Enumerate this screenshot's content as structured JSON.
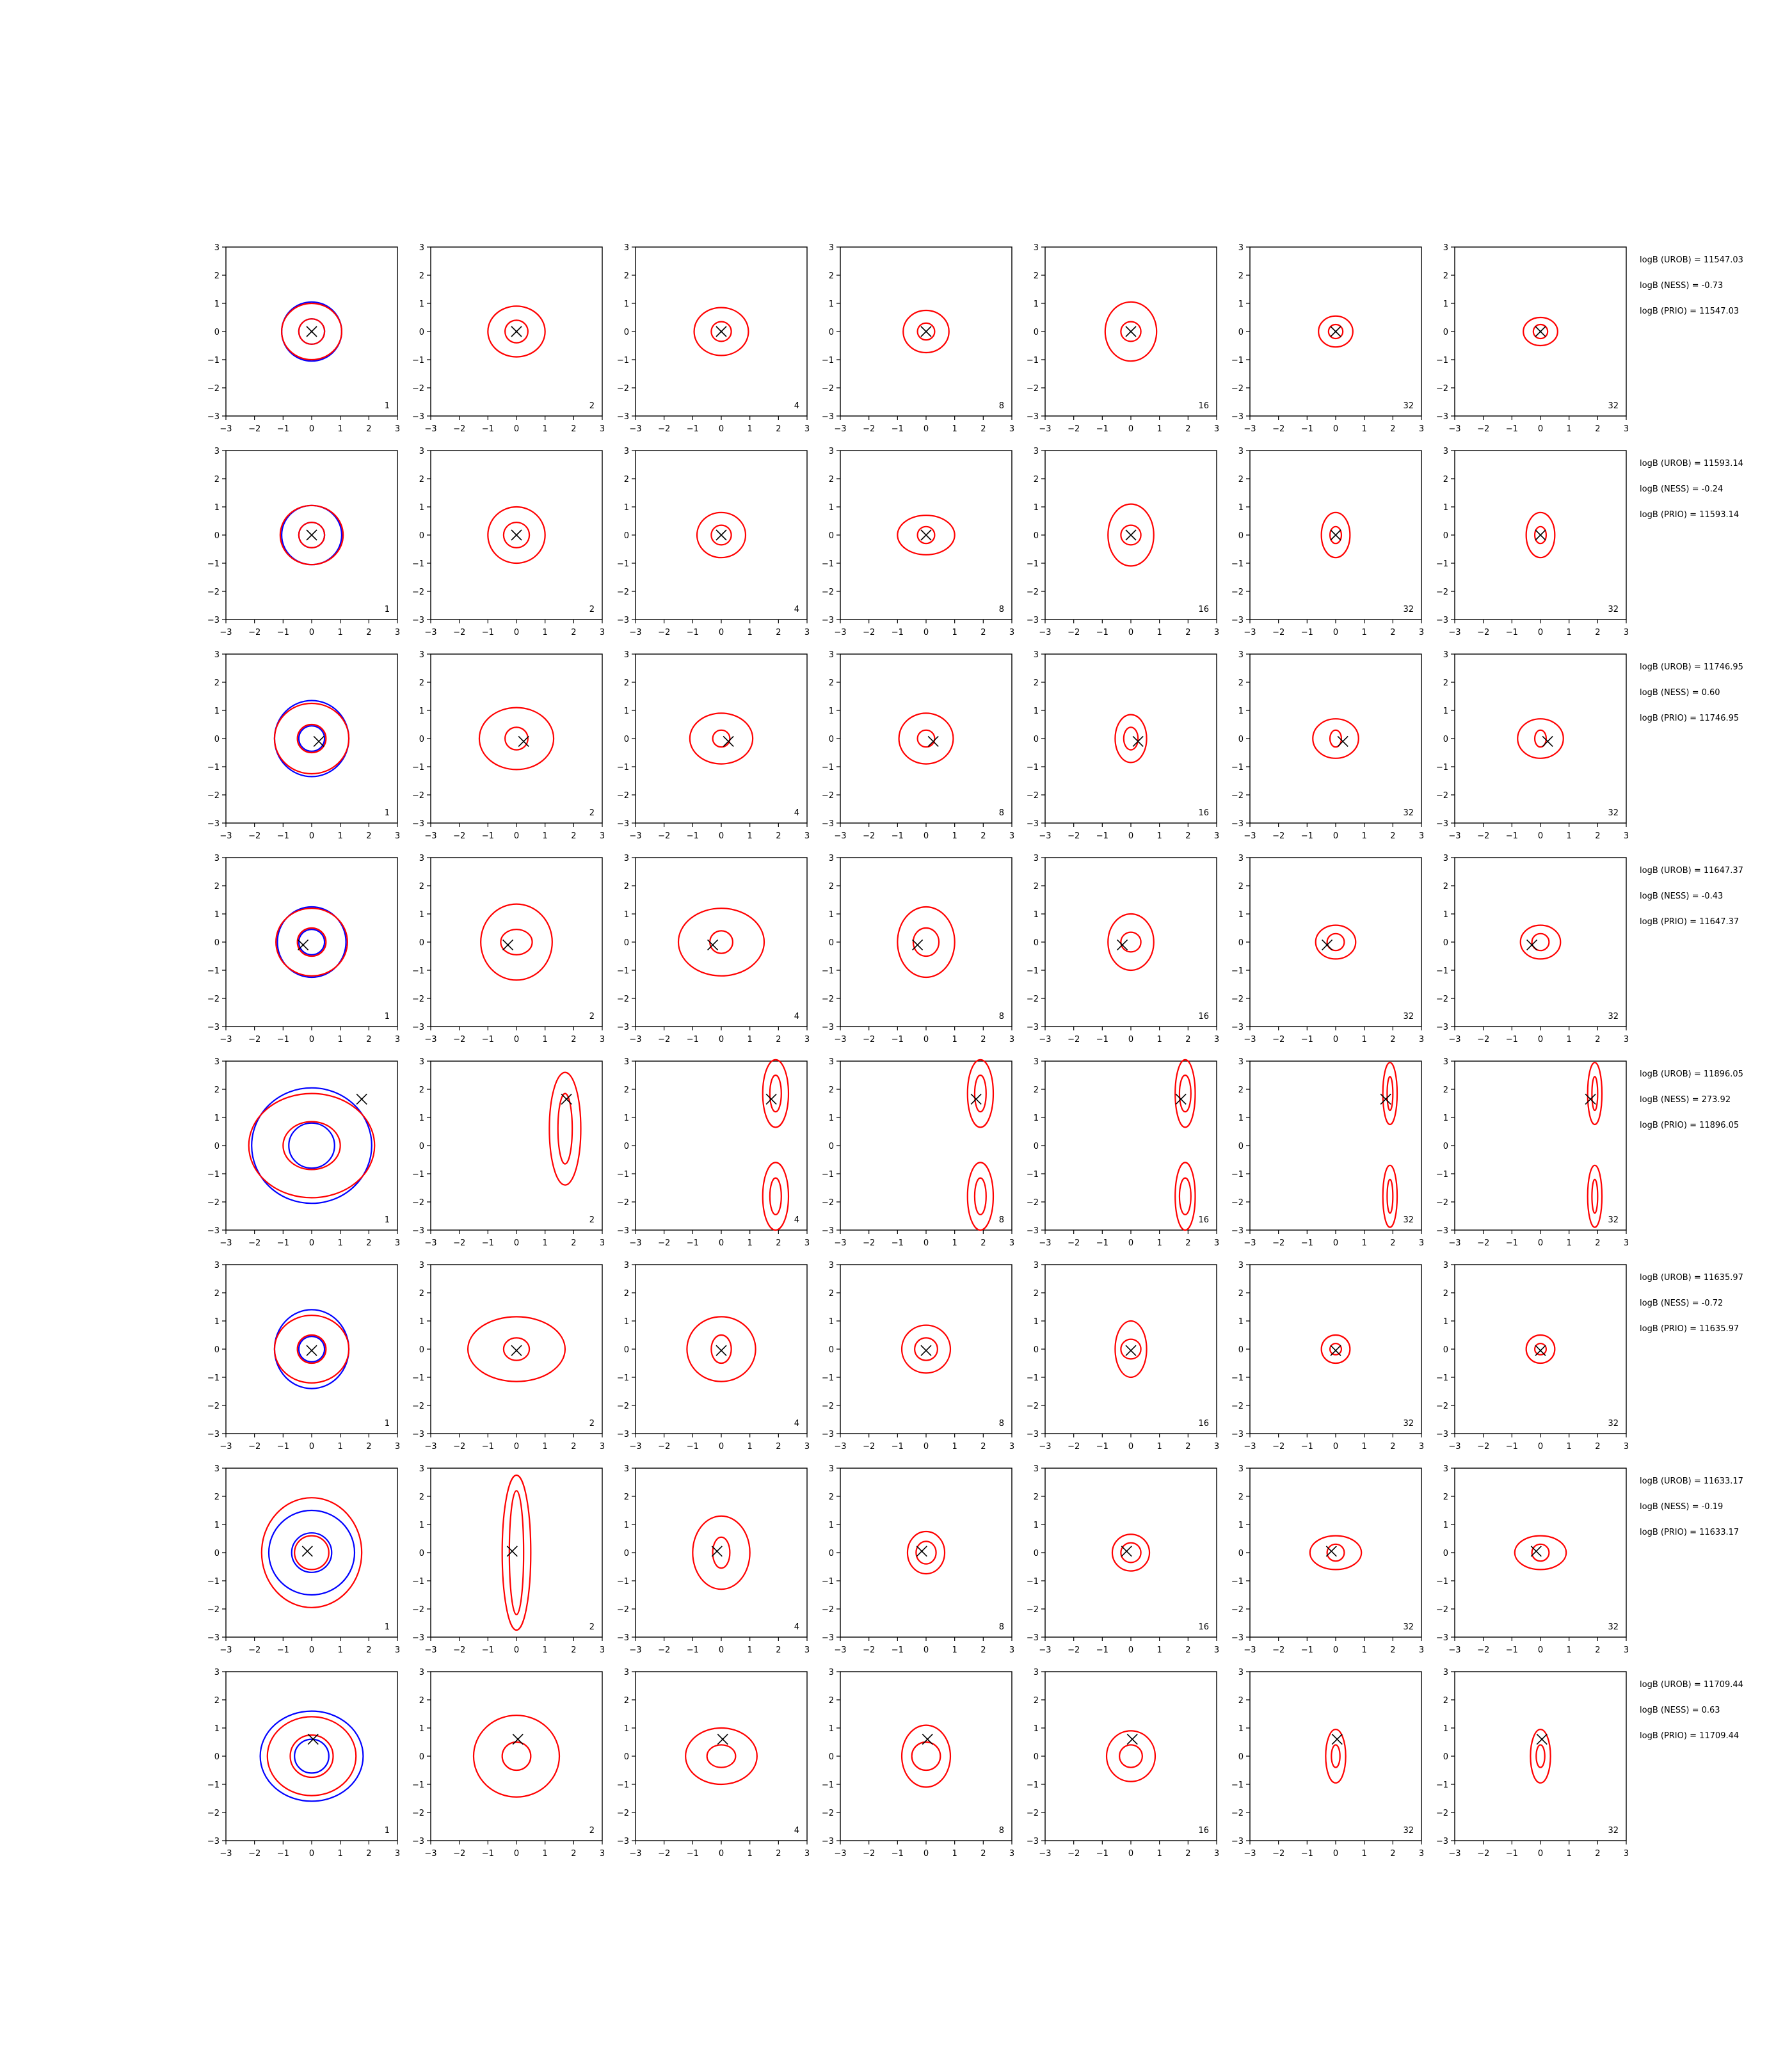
{
  "figure": {
    "layout": "grid of contour panels, 8 rows x 7 columns",
    "axis_range": [
      -3,
      3
    ],
    "ticks": [
      -3,
      -2,
      -1,
      0,
      1,
      2,
      3
    ],
    "colors": {
      "blue_contours": "#0000ff",
      "red_contours": "#ff0000",
      "marker": "#000000"
    },
    "marker_glyph": "x-marker",
    "column_labels": [
      "1",
      "2",
      "4",
      "8",
      "16",
      "32",
      "32"
    ]
  },
  "chart_data": {
    "type": "contour",
    "xlim": [
      -3,
      3
    ],
    "ylim": [
      -3,
      3
    ],
    "grid": false,
    "rows": [
      {
        "marker": [
          0.0,
          0.0
        ],
        "annotations": [
          "logB (UROB) = 11547.03",
          "logB (NESS) = -0.73",
          "logB (PRIO) = 11547.03"
        ],
        "panels": [
          {
            "label": "1",
            "blue": [
              [
                0.45,
                0.45
              ],
              [
                1.05,
                1.05
              ]
            ],
            "red": [
              [
                0.45,
                0.45
              ],
              [
                1.05,
                1.0
              ]
            ]
          },
          {
            "label": "2",
            "red": [
              [
                0.4,
                0.4
              ],
              [
                1.0,
                0.9
              ]
            ]
          },
          {
            "label": "4",
            "red": [
              [
                0.35,
                0.35
              ],
              [
                0.95,
                0.85
              ]
            ]
          },
          {
            "label": "8",
            "red": [
              [
                0.3,
                0.3
              ],
              [
                0.8,
                0.75
              ]
            ]
          },
          {
            "label": "16",
            "red": [
              [
                0.35,
                0.35
              ],
              [
                0.9,
                1.05
              ]
            ]
          },
          {
            "label": "32",
            "red": [
              [
                0.25,
                0.25
              ],
              [
                0.6,
                0.55
              ]
            ]
          },
          {
            "label": "32",
            "red": [
              [
                0.25,
                0.25
              ],
              [
                0.6,
                0.5
              ]
            ]
          }
        ]
      },
      {
        "marker": [
          0.0,
          0.0
        ],
        "annotations": [
          "logB (UROB) = 11593.14",
          "logB (NESS) = -0.24",
          "logB (PRIO) = 11593.14"
        ],
        "panels": [
          {
            "label": "1",
            "blue": [
              [
                0.45,
                0.45
              ],
              [
                1.05,
                1.05
              ]
            ],
            "red": [
              [
                0.45,
                0.45
              ],
              [
                1.1,
                1.05
              ]
            ]
          },
          {
            "label": "2",
            "red": [
              [
                0.45,
                0.45
              ],
              [
                1.0,
                1.0
              ]
            ]
          },
          {
            "label": "4",
            "red": [
              [
                0.35,
                0.35
              ],
              [
                0.85,
                0.8
              ]
            ]
          },
          {
            "label": "8",
            "red": [
              [
                0.3,
                0.3
              ],
              [
                1.0,
                0.7
              ]
            ]
          },
          {
            "label": "16",
            "red": [
              [
                0.35,
                0.35
              ],
              [
                0.8,
                1.1
              ]
            ]
          },
          {
            "label": "32",
            "red": [
              [
                0.2,
                0.3
              ],
              [
                0.5,
                0.8
              ]
            ]
          },
          {
            "label": "32",
            "red": [
              [
                0.2,
                0.3
              ],
              [
                0.5,
                0.8
              ]
            ]
          }
        ]
      },
      {
        "marker": [
          0.25,
          -0.1
        ],
        "annotations": [
          "logB (UROB) = 11746.95",
          "logB (NESS) = 0.60",
          "logB (PRIO) = 11746.95"
        ],
        "panels": [
          {
            "label": "1",
            "blue": [
              [
                0.45,
                0.45
              ],
              [
                1.3,
                1.35
              ]
            ],
            "red": [
              [
                0.5,
                0.5
              ],
              [
                1.3,
                1.25
              ]
            ]
          },
          {
            "label": "2",
            "red": [
              [
                0.4,
                0.4
              ],
              [
                1.3,
                1.1
              ]
            ]
          },
          {
            "label": "4",
            "red": [
              [
                0.3,
                0.3
              ],
              [
                1.1,
                0.9
              ]
            ]
          },
          {
            "label": "8",
            "red": [
              [
                0.3,
                0.3
              ],
              [
                0.95,
                0.9
              ]
            ]
          },
          {
            "label": "16",
            "red": [
              [
                0.25,
                0.4
              ],
              [
                0.55,
                0.85
              ]
            ]
          },
          {
            "label": "32",
            "red": [
              [
                0.2,
                0.3
              ],
              [
                0.8,
                0.7
              ]
            ]
          },
          {
            "label": "32",
            "red": [
              [
                0.2,
                0.3
              ],
              [
                0.8,
                0.7
              ]
            ]
          }
        ]
      },
      {
        "marker": [
          -0.3,
          -0.1
        ],
        "annotations": [
          "logB (UROB) = 11647.37",
          "logB (NESS) = -0.43",
          "logB (PRIO) = 11647.37"
        ],
        "panels": [
          {
            "label": "1",
            "blue": [
              [
                0.45,
                0.45
              ],
              [
                1.2,
                1.25
              ]
            ],
            "red": [
              [
                0.5,
                0.5
              ],
              [
                1.25,
                1.2
              ]
            ]
          },
          {
            "label": "2",
            "red": [
              [
                0.55,
                0.45
              ],
              [
                1.25,
                1.35
              ]
            ]
          },
          {
            "label": "4",
            "red": [
              [
                0.4,
                0.4
              ],
              [
                1.5,
                1.2
              ]
            ]
          },
          {
            "label": "8",
            "red": [
              [
                0.45,
                0.5
              ],
              [
                1.0,
                1.25
              ]
            ]
          },
          {
            "label": "16",
            "red": [
              [
                0.35,
                0.35
              ],
              [
                0.8,
                1.0
              ]
            ]
          },
          {
            "label": "32",
            "red": [
              [
                0.3,
                0.3
              ],
              [
                0.7,
                0.6
              ]
            ]
          },
          {
            "label": "32",
            "red": [
              [
                0.3,
                0.3
              ],
              [
                0.7,
                0.6
              ]
            ]
          }
        ]
      },
      {
        "marker": [
          1.75,
          1.65
        ],
        "annotations": [
          "logB (UROB) = 11896.05",
          "logB (NESS) = 273.92",
          "logB (PRIO) = 11896.05"
        ],
        "panels": [
          {
            "label": "1",
            "blue": [
              [
                0.8,
                0.8
              ],
              [
                2.1,
                2.05
              ]
            ],
            "red": [
              [
                1.0,
                0.85
              ],
              [
                2.2,
                1.85
              ]
            ]
          },
          {
            "label": "2",
            "red": [
              [
                0.25,
                1.25
              ],
              [
                0.55,
                2.0
              ]
            ]
          },
          {
            "label": "4",
            "red": [
              [
                0.2,
                0.65
              ],
              [
                0.45,
                1.2
              ]
            ]
          },
          {
            "label": "8",
            "red": [
              [
                0.2,
                0.65
              ],
              [
                0.45,
                1.2
              ]
            ]
          },
          {
            "label": "16",
            "red": [
              [
                0.2,
                0.65
              ],
              [
                0.35,
                1.2
              ]
            ]
          },
          {
            "label": "32",
            "red": [
              [
                0.1,
                0.6
              ],
              [
                0.25,
                1.1
              ]
            ]
          },
          {
            "label": "32",
            "red": [
              [
                0.1,
                0.6
              ],
              [
                0.25,
                1.1
              ]
            ]
          }
        ]
      },
      {
        "marker": [
          0.0,
          -0.05
        ],
        "annotations": [
          "logB (UROB) = 11635.97",
          "logB (NESS) = -0.72",
          "logB (PRIO) = 11635.97"
        ],
        "panels": [
          {
            "label": "1",
            "blue": [
              [
                0.45,
                0.45
              ],
              [
                1.3,
                1.4
              ]
            ],
            "red": [
              [
                0.5,
                0.5
              ],
              [
                1.3,
                1.2
              ]
            ]
          },
          {
            "label": "2",
            "red": [
              [
                0.45,
                0.4
              ],
              [
                1.7,
                1.15
              ]
            ]
          },
          {
            "label": "4",
            "red": [
              [
                0.35,
                0.5
              ],
              [
                1.2,
                1.15
              ]
            ]
          },
          {
            "label": "8",
            "red": [
              [
                0.4,
                0.4
              ],
              [
                0.85,
                0.85
              ]
            ]
          },
          {
            "label": "16",
            "red": [
              [
                0.35,
                0.35
              ],
              [
                0.55,
                1.0
              ]
            ]
          },
          {
            "label": "32",
            "red": [
              [
                0.2,
                0.2
              ],
              [
                0.5,
                0.5
              ]
            ]
          },
          {
            "label": "32",
            "red": [
              [
                0.2,
                0.2
              ],
              [
                0.5,
                0.5
              ]
            ]
          }
        ]
      },
      {
        "marker": [
          -0.15,
          0.05
        ],
        "annotations": [
          "logB (UROB) = 11633.17",
          "logB (NESS) = -0.19",
          "logB (PRIO) = 11633.17"
        ],
        "panels": [
          {
            "label": "1",
            "blue": [
              [
                0.7,
                0.7
              ],
              [
                1.5,
                1.5
              ]
            ],
            "red": [
              [
                0.6,
                0.6
              ],
              [
                1.75,
                1.95
              ]
            ]
          },
          {
            "label": "2",
            "red": [
              [
                0.25,
                2.2
              ],
              [
                0.5,
                2.75
              ]
            ]
          },
          {
            "label": "4",
            "red": [
              [
                0.3,
                0.55
              ],
              [
                1.0,
                1.3
              ]
            ]
          },
          {
            "label": "8",
            "red": [
              [
                0.35,
                0.4
              ],
              [
                0.65,
                0.75
              ]
            ]
          },
          {
            "label": "16",
            "red": [
              [
                0.35,
                0.35
              ],
              [
                0.65,
                0.65
              ]
            ]
          },
          {
            "label": "32",
            "red": [
              [
                0.3,
                0.3
              ],
              [
                0.9,
                0.6
              ]
            ]
          },
          {
            "label": "32",
            "red": [
              [
                0.3,
                0.3
              ],
              [
                0.9,
                0.6
              ]
            ]
          }
        ]
      },
      {
        "marker": [
          0.05,
          0.6
        ],
        "annotations": [
          "logB (UROB) = 11709.44",
          "logB (NESS) = 0.63",
          "logB (PRIO) = 11709.44"
        ],
        "panels": [
          {
            "label": "1",
            "blue": [
              [
                0.6,
                0.6
              ],
              [
                1.8,
                1.6
              ]
            ],
            "red": [
              [
                0.75,
                0.75
              ],
              [
                1.55,
                1.4
              ]
            ]
          },
          {
            "label": "2",
            "red": [
              [
                0.5,
                0.5
              ],
              [
                1.5,
                1.45
              ]
            ]
          },
          {
            "label": "4",
            "red": [
              [
                0.5,
                0.4
              ],
              [
                1.25,
                1.0
              ]
            ]
          },
          {
            "label": "8",
            "red": [
              [
                0.5,
                0.5
              ],
              [
                0.85,
                1.1
              ]
            ]
          },
          {
            "label": "16",
            "red": [
              [
                0.4,
                0.4
              ],
              [
                0.85,
                0.9
              ]
            ]
          },
          {
            "label": "32",
            "red": [
              [
                0.15,
                0.4
              ],
              [
                0.35,
                0.95
              ]
            ]
          },
          {
            "label": "32",
            "red": [
              [
                0.15,
                0.4
              ],
              [
                0.35,
                0.95
              ]
            ]
          }
        ]
      }
    ]
  }
}
